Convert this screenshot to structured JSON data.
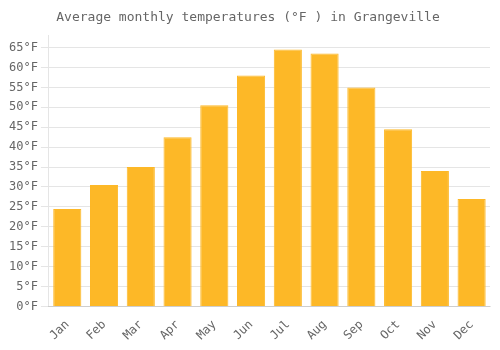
{
  "chart_data": {
    "type": "bar",
    "title": "Average monthly temperatures (°F ) in Grangeville",
    "categories": [
      "Jan",
      "Feb",
      "Mar",
      "Apr",
      "May",
      "Jun",
      "Jul",
      "Aug",
      "Sep",
      "Oct",
      "Nov",
      "Dec"
    ],
    "values": [
      24.5,
      30.5,
      35.0,
      42.5,
      50.5,
      58.0,
      64.5,
      63.5,
      55.0,
      44.5,
      34.0,
      27.0
    ],
    "color": "#FDB827",
    "ylim": [
      0,
      68
    ],
    "yticks": [
      {
        "value": 0,
        "label": "0°F"
      },
      {
        "value": 5,
        "label": "5°F"
      },
      {
        "value": 10,
        "label": "10°F"
      },
      {
        "value": 15,
        "label": "15°F"
      },
      {
        "value": 20,
        "label": "20°F"
      },
      {
        "value": 25,
        "label": "25°F"
      },
      {
        "value": 30,
        "label": "30°F"
      },
      {
        "value": 35,
        "label": "35°F"
      },
      {
        "value": 40,
        "label": "40°F"
      },
      {
        "value": 45,
        "label": "45°F"
      },
      {
        "value": 50,
        "label": "50°F"
      },
      {
        "value": 55,
        "label": "55°F"
      },
      {
        "value": 60,
        "label": "60°F"
      },
      {
        "value": 65,
        "label": "65°F"
      }
    ],
    "grid": true
  }
}
